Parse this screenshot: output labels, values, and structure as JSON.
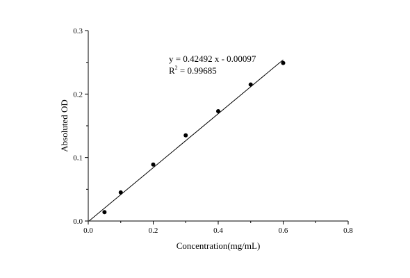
{
  "chart_data": {
    "type": "scatter",
    "xlabel": "Concentration(mg/mL)",
    "ylabel": "Absoluted OD",
    "xlim": [
      0.0,
      0.8
    ],
    "ylim": [
      0.0,
      0.3
    ],
    "x_ticks": [
      0.0,
      0.2,
      0.4,
      0.6,
      0.8
    ],
    "x_tick_labels": [
      "0.0",
      "0.2",
      "0.4",
      "0.6",
      "0.8"
    ],
    "y_ticks": [
      0.0,
      0.1,
      0.2,
      0.3
    ],
    "y_tick_labels": [
      "0.0",
      "0.1",
      "0.2",
      "0.3"
    ],
    "x_minor_ticks": [
      0.1,
      0.3,
      0.5,
      0.7
    ],
    "y_minor_ticks": [
      0.05,
      0.15,
      0.25
    ],
    "grid": false,
    "legend": "none",
    "series": [
      {
        "x": [
          0.05,
          0.1,
          0.2,
          0.3,
          0.4,
          0.5,
          0.6
        ],
        "y": [
          0.014,
          0.045,
          0.089,
          0.135,
          0.173,
          0.215,
          0.249
        ],
        "marker": "filled-circle",
        "color": "#000000"
      }
    ],
    "fit": {
      "slope": 0.42492,
      "intercept": -0.00097,
      "x_range": [
        0.0,
        0.6
      ],
      "color": "#000000"
    },
    "annotation": {
      "equation": "y = 0.42492 x - 0.00097",
      "r2_prefix": "R",
      "r2_exponent": "2",
      "r2_value": " = 0.99685"
    }
  }
}
